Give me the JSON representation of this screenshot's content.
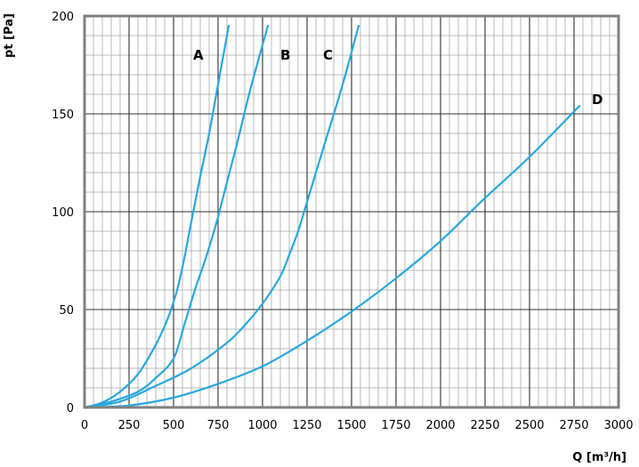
{
  "chart_data": {
    "type": "line",
    "title": "",
    "xlabel": "Q [m³/h]",
    "ylabel": "pt [Pa]",
    "xlim": [
      0,
      3000
    ],
    "ylim": [
      0,
      200
    ],
    "x_ticks": [
      0,
      250,
      500,
      750,
      1000,
      1250,
      1500,
      1750,
      2000,
      2250,
      2500,
      2750,
      3000
    ],
    "y_ticks": [
      0,
      50,
      100,
      150,
      200
    ],
    "x_tick_labels": [
      "0",
      "250",
      "500",
      "750",
      "1000",
      "1250",
      "1500",
      "1750",
      "2000",
      "2250",
      "2500",
      "2750",
      "3000"
    ],
    "y_tick_labels": [
      "0",
      "50",
      "100",
      "150",
      "200"
    ],
    "grid": true,
    "line_color": "#29a8df",
    "series": [
      {
        "name": "A",
        "x": [
          0,
          100,
          200,
          300,
          400,
          470,
          520,
          560,
          600,
          650,
          700,
          750,
          810
        ],
        "y": [
          0,
          2.5,
          8,
          17,
          32,
          46,
          60,
          76,
          95,
          118,
          140,
          165,
          195
        ]
      },
      {
        "name": "B",
        "x": [
          0,
          150,
          300,
          400,
          500,
          560,
          620,
          680,
          740,
          800,
          860,
          930,
          1030
        ],
        "y": [
          0,
          3,
          8,
          15,
          25,
          42,
          60,
          76,
          94,
          115,
          136,
          162,
          195
        ]
      },
      {
        "name": "C",
        "x": [
          0,
          200,
          400,
          600,
          800,
          900,
          1000,
          1100,
          1150,
          1200,
          1250,
          1350,
          1450,
          1540
        ],
        "y": [
          0,
          3,
          11,
          20,
          33,
          42,
          53,
          67,
          78,
          90,
          105,
          135,
          165,
          195
        ]
      },
      {
        "name": "D",
        "x": [
          0,
          250,
          500,
          750,
          1000,
          1250,
          1500,
          1750,
          2000,
          2250,
          2500,
          2780
        ],
        "y": [
          0,
          1,
          5,
          12,
          21,
          34,
          49,
          66,
          85,
          107,
          128,
          154
        ]
      }
    ]
  }
}
